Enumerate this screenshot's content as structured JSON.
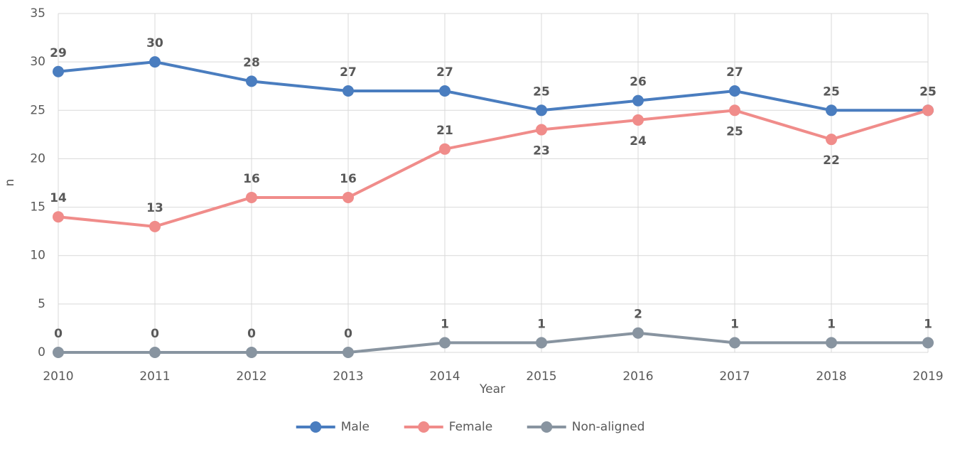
{
  "chart_data": {
    "type": "line",
    "x_label": "Year",
    "y_label": "n",
    "categories": [
      "2010",
      "2011",
      "2012",
      "2013",
      "2014",
      "2015",
      "2016",
      "2017",
      "2018",
      "2019"
    ],
    "series": [
      {
        "name": "Male",
        "color": "#4a7dbf",
        "values": [
          29,
          30,
          28,
          27,
          27,
          25,
          26,
          27,
          25,
          25
        ]
      },
      {
        "name": "Female",
        "color": "#f08c8a",
        "values": [
          14,
          13,
          16,
          16,
          21,
          23,
          24,
          25,
          22,
          25
        ]
      },
      {
        "name": "Non-aligned",
        "color": "#8894a0",
        "values": [
          0,
          0,
          0,
          0,
          1,
          1,
          2,
          1,
          1,
          1
        ]
      }
    ],
    "ylim": [
      0,
      35
    ],
    "yticks": [
      0,
      5,
      10,
      15,
      20,
      25,
      30,
      35
    ],
    "grid": true,
    "legend": "bottom",
    "data_labels": true
  }
}
